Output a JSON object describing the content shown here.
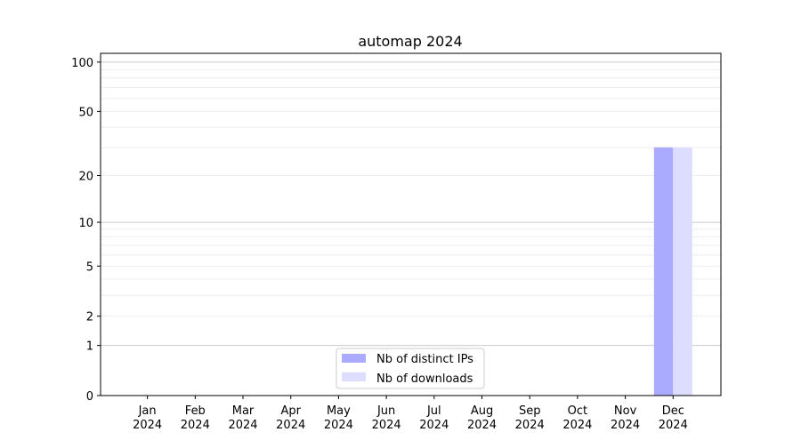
{
  "chart_data": {
    "type": "bar",
    "title": "automap 2024",
    "xlabel": "",
    "ylabel": "",
    "yscale": "log(1+y)",
    "ylim": [
      0,
      113
    ],
    "grid": "horizontal, major and minor",
    "legend_position": "bottom-center",
    "categories": [
      "Jan\n2024",
      "Feb\n2024",
      "Mar\n2024",
      "Apr\n2024",
      "May\n2024",
      "Jun\n2024",
      "Jul\n2024",
      "Aug\n2024",
      "Sep\n2024",
      "Oct\n2024",
      "Nov\n2024",
      "Dec\n2024"
    ],
    "yticks": [
      0,
      1,
      2,
      5,
      10,
      20,
      50,
      100
    ],
    "series": [
      {
        "name": "Nb of distinct IPs",
        "color": "#aaaaff",
        "values": [
          0,
          0,
          0,
          0,
          0,
          0,
          0,
          0,
          0,
          0,
          0,
          30
        ]
      },
      {
        "name": "Nb of downloads",
        "color": "#ddddff",
        "values": [
          0,
          0,
          0,
          0,
          0,
          0,
          0,
          0,
          0,
          0,
          0,
          30
        ]
      }
    ]
  }
}
